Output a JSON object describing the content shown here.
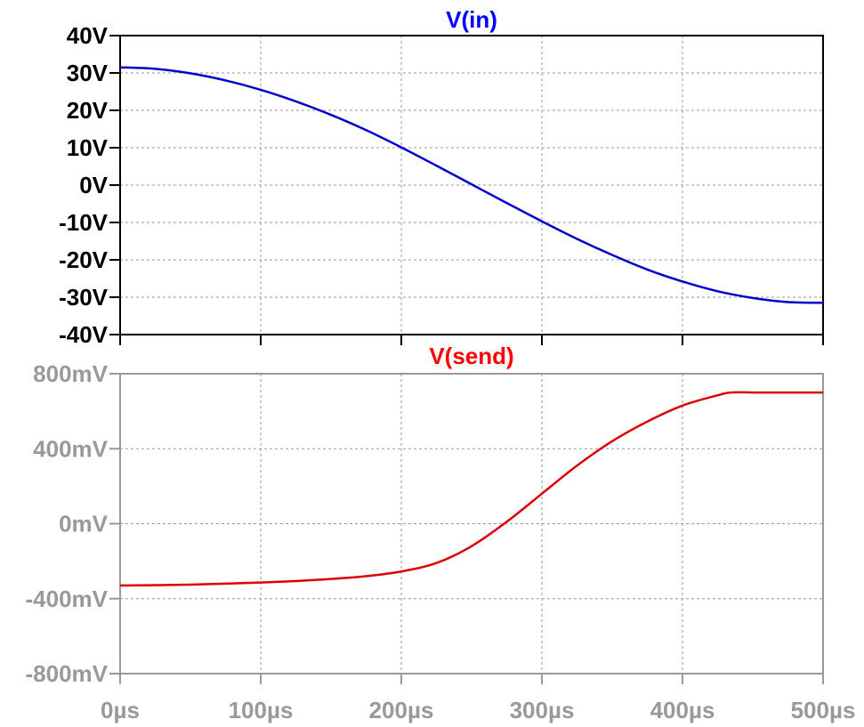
{
  "chart_data": [
    {
      "type": "line",
      "title": "V(in)",
      "title_color": "#0000ff",
      "axis_color": "#000000",
      "x": {
        "range": [
          0,
          500
        ],
        "ticks": [
          0,
          100,
          200,
          300,
          400,
          500
        ]
      },
      "y": {
        "range": [
          -40,
          40
        ],
        "ticks": [
          40,
          30,
          20,
          10,
          0,
          -10,
          -20,
          -30,
          -40
        ],
        "tick_labels": [
          "40V",
          "30V",
          "20V",
          "10V",
          "0V",
          "-10V",
          "-20V",
          "-30V",
          "-40V"
        ]
      },
      "grid": true,
      "series": [
        {
          "color": "#0000cc",
          "x": [
            0,
            25,
            50,
            75,
            100,
            125,
            150,
            175,
            200,
            225,
            250,
            275,
            300,
            325,
            350,
            375,
            400,
            425,
            450,
            475,
            500
          ],
          "y": [
            31.5,
            31.1,
            29.9,
            28.0,
            25.5,
            22.4,
            18.8,
            14.7,
            10.1,
            5.2,
            0.2,
            -4.8,
            -9.7,
            -14.4,
            -18.7,
            -22.6,
            -25.8,
            -28.4,
            -30.2,
            -31.3,
            -31.5
          ]
        }
      ]
    },
    {
      "type": "line",
      "title": "V(send)",
      "title_color": "#ff0000",
      "axis_color": "#999999",
      "x": {
        "range": [
          0,
          500
        ],
        "ticks": [
          0,
          100,
          200,
          300,
          400,
          500
        ],
        "tick_labels": [
          "0µs",
          "100µs",
          "200µs",
          "300µs",
          "400µs",
          "500µs"
        ]
      },
      "y": {
        "range": [
          -800,
          800
        ],
        "ticks": [
          800,
          400,
          0,
          -400,
          -800
        ],
        "tick_labels": [
          "800mV",
          "400mV",
          "0mV",
          "-400mV",
          "-800mV"
        ]
      },
      "grid": true,
      "series": [
        {
          "color": "#dd0000",
          "x": [
            0,
            25,
            50,
            75,
            100,
            125,
            150,
            175,
            200,
            225,
            250,
            275,
            300,
            325,
            350,
            375,
            400,
            425,
            435,
            450,
            475,
            500
          ],
          "y": [
            -330,
            -328,
            -325,
            -320,
            -314,
            -306,
            -295,
            -280,
            -255,
            -210,
            -120,
            10,
            160,
            310,
            440,
            545,
            630,
            685,
            700,
            700,
            700,
            700
          ]
        }
      ]
    }
  ]
}
